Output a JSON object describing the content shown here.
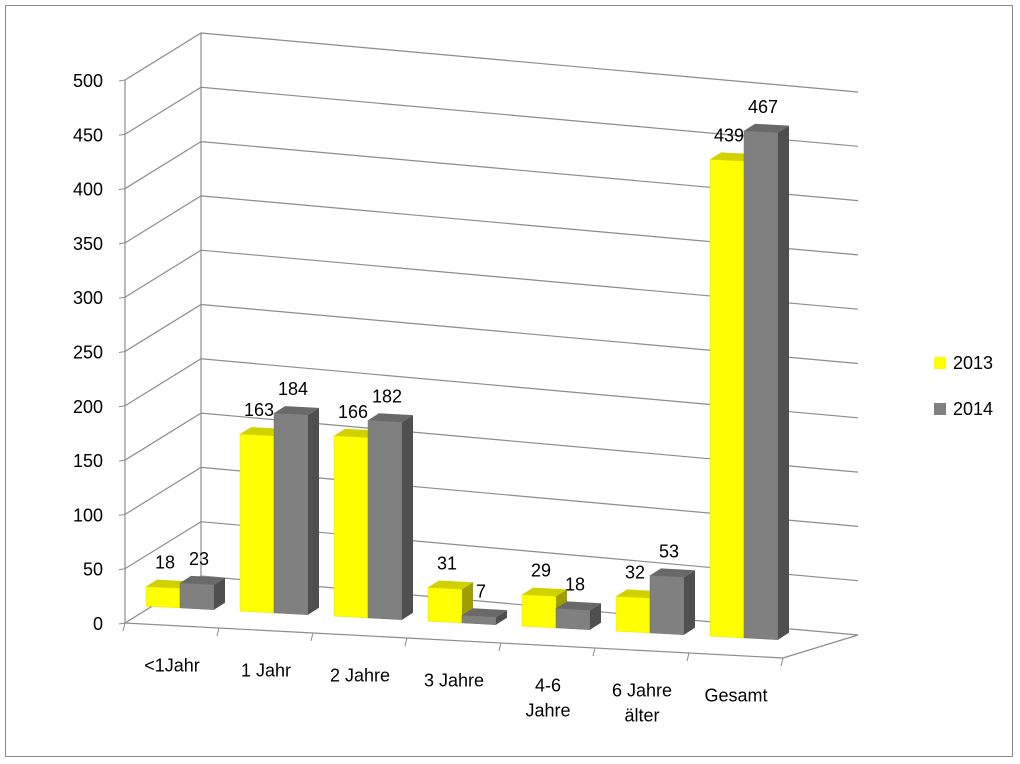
{
  "chart_data": {
    "type": "bar",
    "title": "",
    "xlabel": "",
    "ylabel": "",
    "ylim": [
      0,
      500
    ],
    "yticks": [
      "0",
      "50",
      "100",
      "150",
      "200",
      "250",
      "300",
      "350",
      "400",
      "450",
      "500"
    ],
    "grid": true,
    "legend_position": "right",
    "categories": [
      [
        "<1Jahr"
      ],
      [
        "1 Jahr"
      ],
      [
        "2 Jahre"
      ],
      [
        "3 Jahre"
      ],
      [
        "4-6",
        "Jahre"
      ],
      [
        "6 Jahre",
        "älter"
      ],
      [
        "Gesamt"
      ]
    ],
    "series": [
      {
        "name": "2013",
        "color": "#ffff00",
        "values": [
          18,
          163,
          166,
          31,
          29,
          32,
          439
        ]
      },
      {
        "name": "2014",
        "color": "#808080",
        "values": [
          23,
          184,
          182,
          7,
          18,
          53,
          467
        ]
      }
    ]
  }
}
